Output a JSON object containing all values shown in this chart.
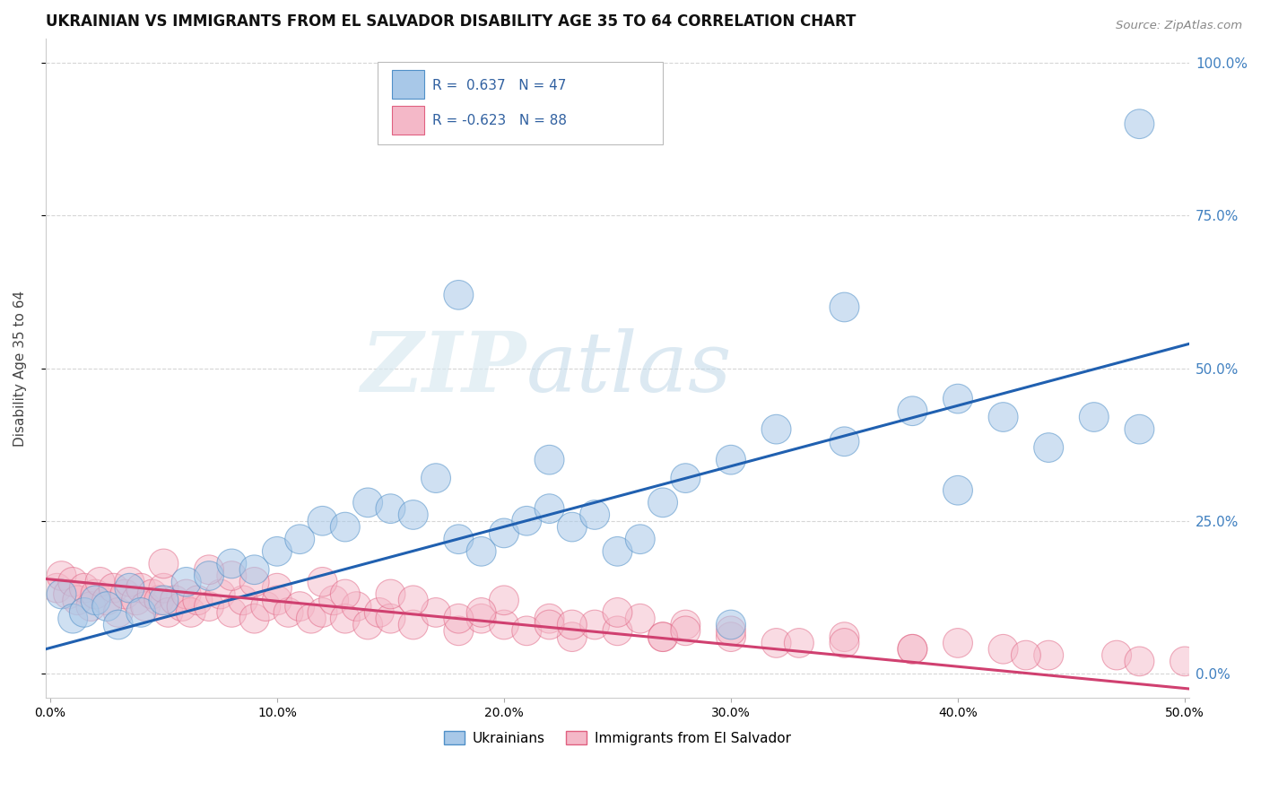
{
  "title": "UKRAINIAN VS IMMIGRANTS FROM EL SALVADOR DISABILITY AGE 35 TO 64 CORRELATION CHART",
  "source": "Source: ZipAtlas.com",
  "ylabel": "Disability Age 35 to 64",
  "legend_blue_r": "R =  0.637",
  "legend_blue_n": "N = 47",
  "legend_pink_r": "R = -0.623",
  "legend_pink_n": "N = 88",
  "legend_label_blue": "Ukrainians",
  "legend_label_pink": "Immigrants from El Salvador",
  "blue_fill": "#a8c8e8",
  "pink_fill": "#f4b8c8",
  "blue_edge": "#5090c8",
  "pink_edge": "#e06080",
  "blue_line_color": "#2060b0",
  "pink_line_color": "#d04070",
  "background_color": "#ffffff",
  "watermark_zip": "ZIP",
  "watermark_atlas": "atlas",
  "legend_text_color": "#3060a0",
  "right_tick_color": "#4080c0",
  "blue_scatter_x": [
    0.005,
    0.01,
    0.015,
    0.02,
    0.025,
    0.03,
    0.035,
    0.04,
    0.05,
    0.06,
    0.07,
    0.08,
    0.09,
    0.1,
    0.11,
    0.12,
    0.13,
    0.14,
    0.15,
    0.16,
    0.17,
    0.18,
    0.19,
    0.2,
    0.21,
    0.22,
    0.23,
    0.24,
    0.25,
    0.26,
    0.27,
    0.28,
    0.3,
    0.32,
    0.35,
    0.38,
    0.4,
    0.42,
    0.44,
    0.46,
    0.48,
    0.3,
    0.35,
    0.22,
    0.18,
    0.48,
    0.4
  ],
  "blue_scatter_y": [
    0.13,
    0.09,
    0.1,
    0.12,
    0.11,
    0.08,
    0.14,
    0.1,
    0.12,
    0.15,
    0.16,
    0.18,
    0.17,
    0.2,
    0.22,
    0.25,
    0.24,
    0.28,
    0.27,
    0.26,
    0.32,
    0.22,
    0.2,
    0.23,
    0.25,
    0.27,
    0.24,
    0.26,
    0.2,
    0.22,
    0.28,
    0.32,
    0.35,
    0.4,
    0.38,
    0.43,
    0.45,
    0.42,
    0.37,
    0.42,
    0.9,
    0.08,
    0.6,
    0.35,
    0.62,
    0.4,
    0.3
  ],
  "pink_scatter_x": [
    0.003,
    0.005,
    0.008,
    0.01,
    0.012,
    0.015,
    0.018,
    0.02,
    0.022,
    0.025,
    0.028,
    0.03,
    0.033,
    0.035,
    0.038,
    0.04,
    0.042,
    0.045,
    0.048,
    0.05,
    0.052,
    0.055,
    0.058,
    0.06,
    0.062,
    0.065,
    0.07,
    0.075,
    0.08,
    0.085,
    0.09,
    0.095,
    0.1,
    0.105,
    0.11,
    0.115,
    0.12,
    0.125,
    0.13,
    0.135,
    0.14,
    0.145,
    0.15,
    0.16,
    0.17,
    0.18,
    0.19,
    0.2,
    0.21,
    0.22,
    0.23,
    0.24,
    0.25,
    0.26,
    0.27,
    0.28,
    0.3,
    0.32,
    0.35,
    0.38,
    0.4,
    0.42,
    0.44,
    0.47,
    0.5,
    0.2,
    0.25,
    0.3,
    0.35,
    0.15,
    0.1,
    0.08,
    0.18,
    0.22,
    0.27,
    0.12,
    0.07,
    0.05,
    0.16,
    0.09,
    0.13,
    0.19,
    0.23,
    0.28,
    0.33,
    0.38,
    0.43,
    0.48
  ],
  "pink_scatter_y": [
    0.14,
    0.16,
    0.13,
    0.15,
    0.12,
    0.14,
    0.11,
    0.13,
    0.15,
    0.12,
    0.14,
    0.1,
    0.13,
    0.15,
    0.12,
    0.14,
    0.11,
    0.13,
    0.12,
    0.14,
    0.1,
    0.12,
    0.11,
    0.13,
    0.1,
    0.12,
    0.11,
    0.13,
    0.1,
    0.12,
    0.09,
    0.11,
    0.12,
    0.1,
    0.11,
    0.09,
    0.1,
    0.12,
    0.09,
    0.11,
    0.08,
    0.1,
    0.09,
    0.08,
    0.1,
    0.07,
    0.09,
    0.08,
    0.07,
    0.09,
    0.06,
    0.08,
    0.07,
    0.09,
    0.06,
    0.08,
    0.06,
    0.05,
    0.06,
    0.04,
    0.05,
    0.04,
    0.03,
    0.03,
    0.02,
    0.12,
    0.1,
    0.07,
    0.05,
    0.13,
    0.14,
    0.16,
    0.09,
    0.08,
    0.06,
    0.15,
    0.17,
    0.18,
    0.12,
    0.15,
    0.13,
    0.1,
    0.08,
    0.07,
    0.05,
    0.04,
    0.03,
    0.02
  ],
  "xmin": -0.002,
  "xmax": 0.502,
  "ymin": -0.04,
  "ymax": 1.04,
  "blue_line_x0": -0.002,
  "blue_line_x1": 0.502,
  "blue_line_y0": 0.04,
  "blue_line_y1": 0.54,
  "pink_line_x0": -0.002,
  "pink_line_x1": 0.502,
  "pink_line_y0": 0.155,
  "pink_line_y1": -0.025
}
